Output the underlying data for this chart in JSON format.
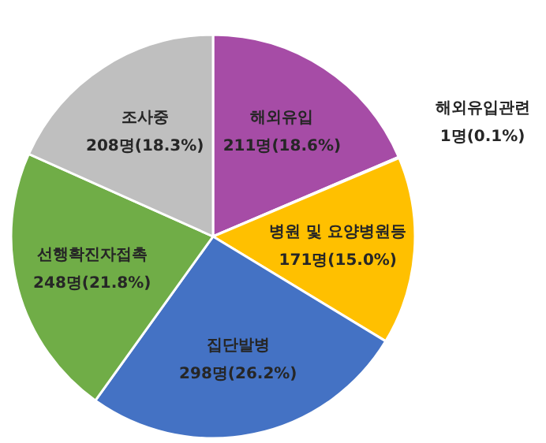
{
  "chart_data": {
    "type": "pie",
    "categories": [
      "해외유입",
      "해외유입관련",
      "병원 및 요양병원등",
      "집단발병",
      "선행확진자접촉",
      "조사중"
    ],
    "values": [
      211,
      1,
      171,
      298,
      248,
      208
    ],
    "colors": [
      "#a64ca6",
      "#e6e6e6",
      "#ffc000",
      "#4472c4",
      "#70ad47",
      "#bfbfbf"
    ],
    "value_labels": [
      "211명(18.6%)",
      "1명(0.1%)",
      "171명(15.0%)",
      "298명(26.2%)",
      "248명(21.8%)",
      "208명(18.3%)"
    ]
  }
}
